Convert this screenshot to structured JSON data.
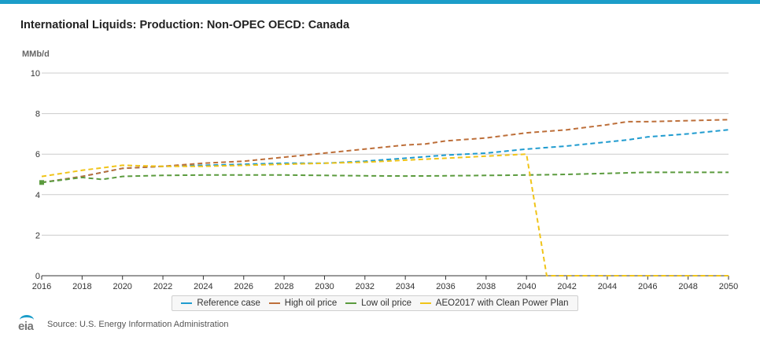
{
  "page": {
    "title": "International Liquids: Production: Non-OPEC OECD: Canada",
    "y_unit": "MMb/d",
    "source": "Source: U.S. Energy Information Administration",
    "logo_text": "eia"
  },
  "colors": {
    "accent_bar": "#1b9dc9",
    "grid": "#cccccc",
    "axis": "#333333"
  },
  "chart_data": {
    "type": "line",
    "title": "International Liquids: Production: Non-OPEC OECD: Canada",
    "ylabel": "MMb/d",
    "xlabel": "",
    "xlim": [
      2016,
      2050
    ],
    "ylim": [
      0,
      10
    ],
    "x_ticks": [
      2016,
      2018,
      2020,
      2022,
      2024,
      2026,
      2028,
      2030,
      2032,
      2034,
      2036,
      2038,
      2040,
      2042,
      2044,
      2046,
      2048,
      2050
    ],
    "y_ticks": [
      0,
      2,
      4,
      6,
      8,
      10
    ],
    "grid": true,
    "legend_position": "bottom",
    "series": [
      {
        "name": "Reference case",
        "color": "#1f9bcf",
        "points": [
          [
            2016,
            4.6
          ],
          [
            2018,
            4.9
          ],
          [
            2020,
            5.3
          ],
          [
            2022,
            5.4
          ],
          [
            2024,
            5.45
          ],
          [
            2026,
            5.5
          ],
          [
            2028,
            5.55
          ],
          [
            2030,
            5.55
          ],
          [
            2032,
            5.65
          ],
          [
            2034,
            5.8
          ],
          [
            2036,
            5.95
          ],
          [
            2038,
            6.05
          ],
          [
            2040,
            6.25
          ],
          [
            2042,
            6.4
          ],
          [
            2044,
            6.6
          ],
          [
            2045,
            6.7
          ],
          [
            2046,
            6.85
          ],
          [
            2048,
            7.0
          ],
          [
            2050,
            7.2
          ]
        ]
      },
      {
        "name": "High oil price",
        "color": "#bd6f3a",
        "points": [
          [
            2016,
            4.6
          ],
          [
            2018,
            4.9
          ],
          [
            2020,
            5.3
          ],
          [
            2022,
            5.4
          ],
          [
            2024,
            5.55
          ],
          [
            2026,
            5.65
          ],
          [
            2028,
            5.85
          ],
          [
            2030,
            6.05
          ],
          [
            2032,
            6.25
          ],
          [
            2034,
            6.45
          ],
          [
            2035,
            6.5
          ],
          [
            2036,
            6.65
          ],
          [
            2038,
            6.8
          ],
          [
            2040,
            7.05
          ],
          [
            2042,
            7.2
          ],
          [
            2044,
            7.45
          ],
          [
            2045,
            7.6
          ],
          [
            2046,
            7.6
          ],
          [
            2048,
            7.65
          ],
          [
            2050,
            7.7
          ]
        ]
      },
      {
        "name": "Low oil price",
        "color": "#5b9b3e",
        "points": [
          [
            2016,
            4.6
          ],
          [
            2018,
            4.85
          ],
          [
            2019,
            4.75
          ],
          [
            2020,
            4.9
          ],
          [
            2022,
            4.95
          ],
          [
            2024,
            4.97
          ],
          [
            2026,
            4.97
          ],
          [
            2028,
            4.97
          ],
          [
            2030,
            4.95
          ],
          [
            2032,
            4.93
          ],
          [
            2034,
            4.92
          ],
          [
            2036,
            4.93
          ],
          [
            2038,
            4.95
          ],
          [
            2040,
            4.97
          ],
          [
            2042,
            5.0
          ],
          [
            2044,
            5.05
          ],
          [
            2046,
            5.1
          ],
          [
            2048,
            5.1
          ],
          [
            2050,
            5.1
          ]
        ]
      },
      {
        "name": "AEO2017 with Clean Power Plan",
        "color": "#f0c419",
        "points": [
          [
            2016,
            4.9
          ],
          [
            2018,
            5.2
          ],
          [
            2020,
            5.45
          ],
          [
            2022,
            5.4
          ],
          [
            2024,
            5.4
          ],
          [
            2026,
            5.45
          ],
          [
            2028,
            5.5
          ],
          [
            2030,
            5.55
          ],
          [
            2032,
            5.6
          ],
          [
            2034,
            5.7
          ],
          [
            2036,
            5.8
          ],
          [
            2038,
            5.9
          ],
          [
            2040,
            6.0
          ],
          [
            2041,
            0.0
          ],
          [
            2042,
            0.0
          ],
          [
            2044,
            0.0
          ],
          [
            2046,
            0.0
          ],
          [
            2048,
            0.0
          ],
          [
            2050,
            0.0
          ]
        ]
      }
    ]
  }
}
